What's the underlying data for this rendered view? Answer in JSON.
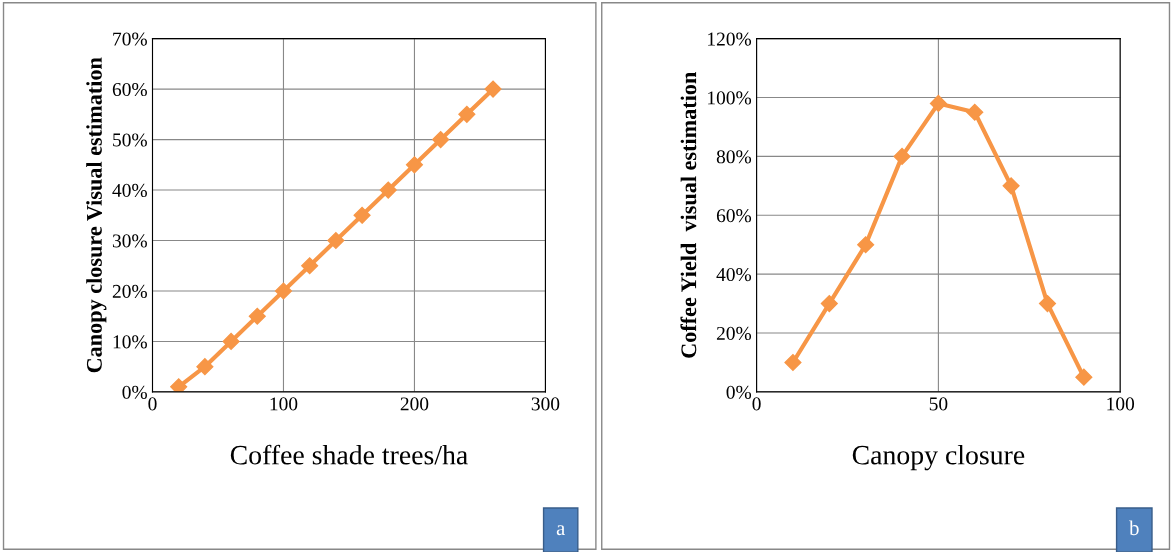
{
  "chart_data": [
    {
      "type": "line",
      "xlabel": "Coffee shade trees/ha",
      "ylabel": "Canopy closure Visual estimation",
      "annotations": [
        "a"
      ],
      "x": [
        20,
        40,
        60,
        80,
        100,
        120,
        140,
        160,
        180,
        200,
        220,
        240,
        260
      ],
      "series": [
        {
          "color": "#f79646",
          "values": [
            1,
            5,
            10,
            15,
            20,
            25,
            30,
            35,
            40,
            45,
            50,
            55,
            60
          ]
        }
      ],
      "xlim": [
        0,
        300
      ],
      "xticks": [
        0,
        100,
        200,
        300
      ],
      "ylim": [
        0,
        70
      ],
      "yticks": [
        {
          "value": 0,
          "label": "0%"
        },
        {
          "value": 10,
          "label": "10%"
        },
        {
          "value": 20,
          "label": "20%"
        },
        {
          "value": 30,
          "label": "30%"
        },
        {
          "value": 40,
          "label": "40%"
        },
        {
          "value": 50,
          "label": "50%"
        },
        {
          "value": 60,
          "label": "60%"
        },
        {
          "value": 70,
          "label": "70%"
        }
      ],
      "grid": true,
      "marker": "diamond",
      "line_style": "solid"
    },
    {
      "type": "line",
      "xlabel": "Canopy closure",
      "ylabel": "Coffee Yield  visual estimation",
      "annotations": [
        "b"
      ],
      "x": [
        10,
        20,
        30,
        40,
        50,
        60,
        70,
        80,
        90
      ],
      "series": [
        {
          "color": "#f79646",
          "values": [
            10,
            30,
            50,
            80,
            98,
            95,
            70,
            30,
            5
          ]
        }
      ],
      "xlim": [
        0,
        100
      ],
      "xticks": [
        0,
        50,
        100
      ],
      "ylim": [
        0,
        120
      ],
      "yticks": [
        {
          "value": 0,
          "label": "0%"
        },
        {
          "value": 20,
          "label": "20%"
        },
        {
          "value": 40,
          "label": "40%"
        },
        {
          "value": 60,
          "label": "60%"
        },
        {
          "value": 80,
          "label": "80%"
        },
        {
          "value": 100,
          "label": "100%"
        },
        {
          "value": 120,
          "label": "120%"
        }
      ],
      "grid": true,
      "marker": "diamond",
      "line_style": "solid"
    }
  ]
}
